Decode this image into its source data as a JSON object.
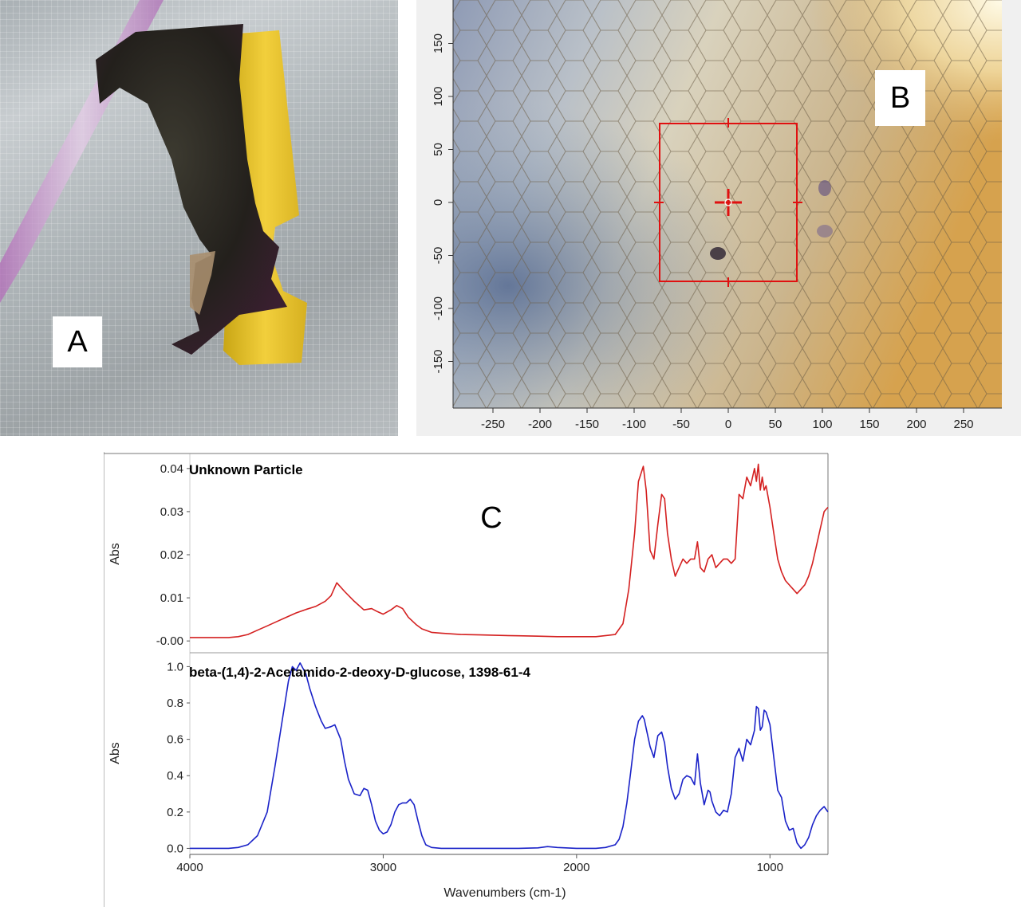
{
  "panels": {
    "a": {
      "letter": "A"
    },
    "b": {
      "letter": "B"
    },
    "c": {
      "letter": "C"
    }
  },
  "microscope": {
    "x_ticks": [
      "-250",
      "-200",
      "-150",
      "-100",
      "-50",
      "0",
      "50",
      "100",
      "150",
      "200",
      "250"
    ],
    "y_ticks": [
      "150",
      "100",
      "50",
      "0",
      "-50",
      "-100",
      "-150"
    ],
    "marker_color": "#e01010"
  },
  "chart_data": [
    {
      "type": "line",
      "title": "Unknown Particle",
      "ylabel": "Abs",
      "xlabel": "",
      "xlim": [
        4000,
        700
      ],
      "ylim": [
        -0.002,
        0.042
      ],
      "y_ticks": [
        "0.04",
        "0.03",
        "0.02",
        "0.01",
        "-0.00"
      ],
      "series": [
        {
          "color": "#d42020",
          "x": [
            4000,
            3900,
            3800,
            3750,
            3700,
            3650,
            3600,
            3550,
            3500,
            3450,
            3400,
            3350,
            3300,
            3270,
            3240,
            3200,
            3150,
            3100,
            3060,
            3030,
            3000,
            2960,
            2930,
            2900,
            2870,
            2830,
            2800,
            2750,
            2700,
            2600,
            2500,
            2400,
            2300,
            2200,
            2100,
            2000,
            1900,
            1800,
            1760,
            1730,
            1700,
            1680,
            1655,
            1640,
            1620,
            1600,
            1580,
            1560,
            1545,
            1530,
            1510,
            1490,
            1470,
            1450,
            1430,
            1410,
            1390,
            1375,
            1360,
            1340,
            1320,
            1300,
            1280,
            1260,
            1240,
            1220,
            1200,
            1180,
            1160,
            1140,
            1120,
            1100,
            1080,
            1070,
            1060,
            1050,
            1040,
            1030,
            1020,
            1000,
            980,
            960,
            940,
            920,
            900,
            880,
            860,
            840,
            820,
            800,
            780,
            760,
            740,
            720,
            700
          ],
          "y": [
            0.0008,
            0.0008,
            0.0008,
            0.001,
            0.0015,
            0.0025,
            0.0035,
            0.0045,
            0.0055,
            0.0065,
            0.0073,
            0.008,
            0.0092,
            0.0105,
            0.0135,
            0.0115,
            0.0092,
            0.0072,
            0.0075,
            0.0068,
            0.0062,
            0.0072,
            0.0082,
            0.0075,
            0.0055,
            0.0038,
            0.0028,
            0.002,
            0.0018,
            0.0015,
            0.0014,
            0.0013,
            0.0012,
            0.0011,
            0.001,
            0.001,
            0.001,
            0.0015,
            0.004,
            0.012,
            0.025,
            0.037,
            0.0405,
            0.035,
            0.021,
            0.019,
            0.027,
            0.034,
            0.033,
            0.025,
            0.019,
            0.015,
            0.017,
            0.019,
            0.018,
            0.019,
            0.019,
            0.023,
            0.017,
            0.016,
            0.019,
            0.02,
            0.017,
            0.018,
            0.019,
            0.019,
            0.018,
            0.019,
            0.034,
            0.033,
            0.038,
            0.036,
            0.04,
            0.037,
            0.041,
            0.035,
            0.038,
            0.035,
            0.036,
            0.031,
            0.025,
            0.019,
            0.016,
            0.014,
            0.013,
            0.012,
            0.011,
            0.012,
            0.013,
            0.015,
            0.018,
            0.022,
            0.026,
            0.03,
            0.031
          ]
        }
      ]
    },
    {
      "type": "line",
      "title": "beta-(1,4)-2-Acetamido-2-deoxy-D-glucose, 1398-61-4",
      "ylabel": "Abs",
      "xlabel": "Wavenumbers (cm-1)",
      "xlim": [
        4000,
        700
      ],
      "ylim": [
        -0.02,
        1.05
      ],
      "x_ticks": [
        "4000",
        "3000",
        "2000",
        "1000"
      ],
      "y_ticks": [
        "1.0",
        "0.8",
        "0.6",
        "0.4",
        "0.2",
        "0.0"
      ],
      "series": [
        {
          "color": "#1a22c8",
          "x": [
            4000,
            3900,
            3800,
            3750,
            3700,
            3650,
            3600,
            3560,
            3520,
            3490,
            3470,
            3450,
            3430,
            3400,
            3380,
            3350,
            3320,
            3300,
            3270,
            3250,
            3220,
            3200,
            3180,
            3150,
            3120,
            3100,
            3080,
            3060,
            3040,
            3020,
            3000,
            2980,
            2960,
            2940,
            2920,
            2900,
            2880,
            2860,
            2840,
            2820,
            2800,
            2780,
            2750,
            2700,
            2600,
            2500,
            2400,
            2300,
            2200,
            2150,
            2100,
            2000,
            1900,
            1850,
            1800,
            1780,
            1760,
            1740,
            1720,
            1700,
            1680,
            1660,
            1650,
            1640,
            1620,
            1600,
            1580,
            1560,
            1545,
            1530,
            1510,
            1490,
            1470,
            1450,
            1430,
            1410,
            1390,
            1375,
            1360,
            1340,
            1320,
            1310,
            1300,
            1280,
            1260,
            1240,
            1220,
            1200,
            1180,
            1160,
            1140,
            1120,
            1100,
            1080,
            1070,
            1060,
            1050,
            1040,
            1030,
            1020,
            1000,
            980,
            960,
            940,
            920,
            900,
            880,
            860,
            840,
            820,
            800,
            780,
            760,
            740,
            720,
            700
          ],
          "y": [
            0,
            0,
            0,
            0.005,
            0.02,
            0.07,
            0.2,
            0.45,
            0.72,
            0.92,
            1.0,
            0.98,
            1.02,
            0.96,
            0.88,
            0.78,
            0.7,
            0.66,
            0.67,
            0.68,
            0.6,
            0.48,
            0.38,
            0.3,
            0.29,
            0.33,
            0.32,
            0.24,
            0.15,
            0.1,
            0.08,
            0.09,
            0.13,
            0.2,
            0.24,
            0.25,
            0.25,
            0.27,
            0.24,
            0.15,
            0.07,
            0.02,
            0.005,
            0,
            0,
            0,
            0,
            0,
            0.003,
            0.01,
            0.005,
            0,
            0,
            0.005,
            0.02,
            0.05,
            0.12,
            0.25,
            0.42,
            0.6,
            0.7,
            0.73,
            0.71,
            0.66,
            0.56,
            0.5,
            0.62,
            0.64,
            0.58,
            0.45,
            0.33,
            0.27,
            0.3,
            0.38,
            0.4,
            0.39,
            0.35,
            0.52,
            0.36,
            0.24,
            0.32,
            0.31,
            0.26,
            0.2,
            0.18,
            0.21,
            0.2,
            0.3,
            0.5,
            0.55,
            0.48,
            0.6,
            0.57,
            0.65,
            0.78,
            0.77,
            0.65,
            0.67,
            0.76,
            0.75,
            0.68,
            0.5,
            0.32,
            0.28,
            0.15,
            0.1,
            0.11,
            0.03,
            0.0,
            0.02,
            0.06,
            0.13,
            0.18,
            0.21,
            0.23,
            0.2
          ]
        }
      ]
    }
  ]
}
